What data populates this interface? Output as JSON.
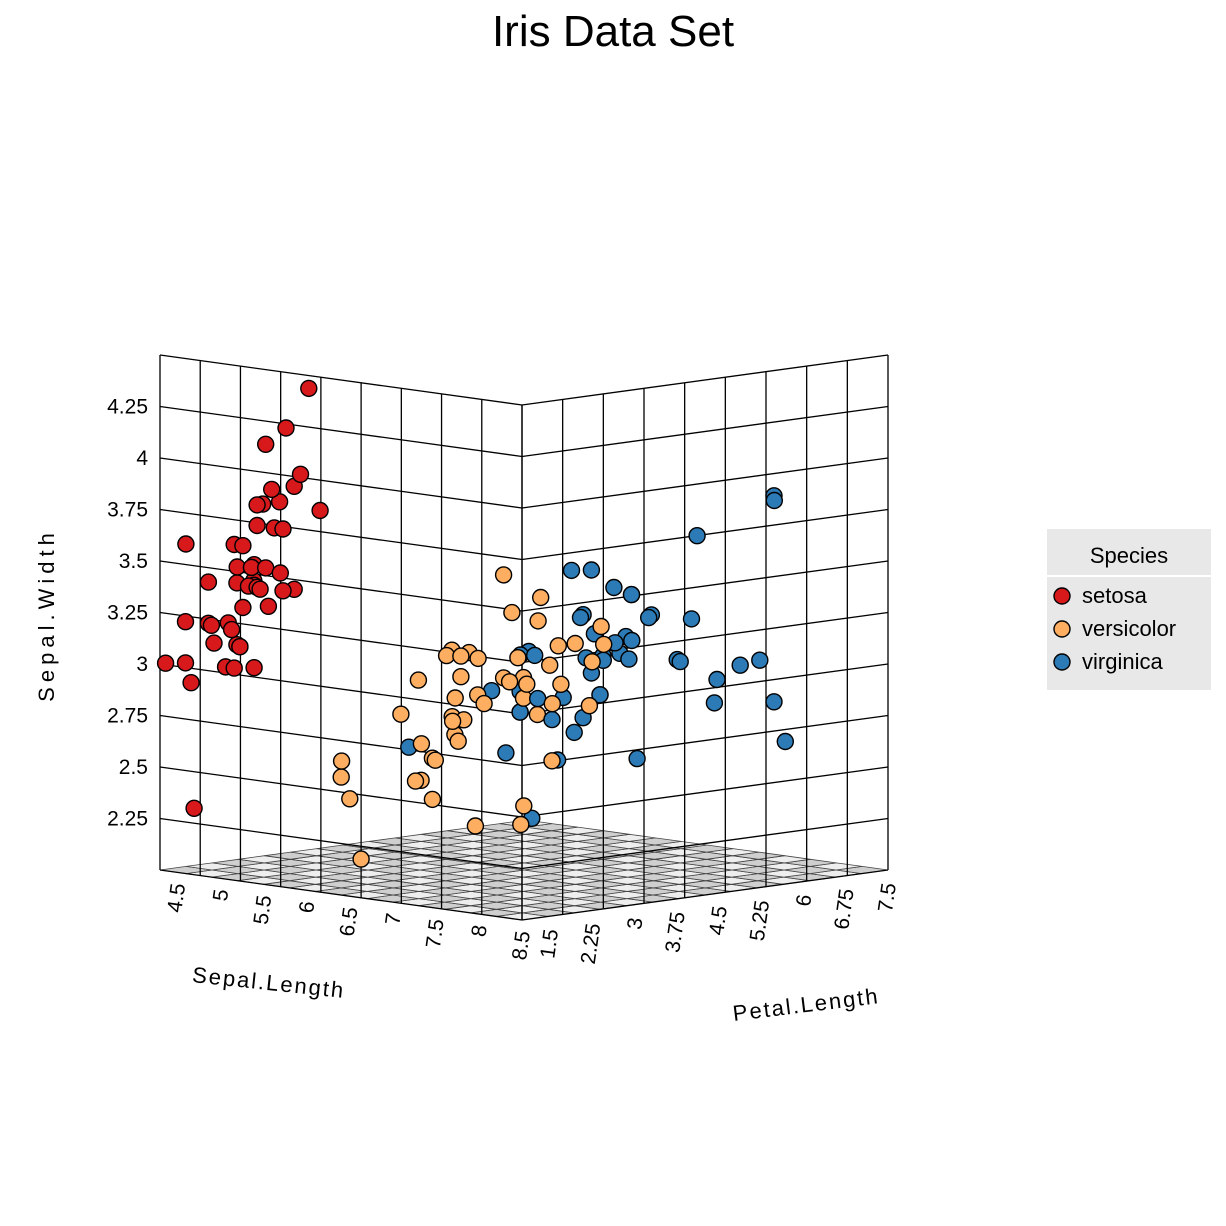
{
  "chart_data": {
    "type": "scatter",
    "title": "Iris Data Set",
    "axes": {
      "x": {
        "label": "Sepal.Length",
        "ticks": [
          "4.5",
          "5",
          "5.5",
          "6",
          "6.5",
          "7",
          "7.5",
          "8",
          "8.5"
        ],
        "range": [
          4.3,
          8.5
        ]
      },
      "y": {
        "label": "Sepal.Width",
        "ticks": [
          "2.25",
          "2.5",
          "2.75",
          "3",
          "3.25",
          "3.5",
          "3.75",
          "4",
          "4.25"
        ],
        "range": [
          2.0,
          4.5
        ]
      },
      "z": {
        "label": "Petal.Length",
        "ticks": [
          "1.5",
          "2.25",
          "3",
          "3.75",
          "4.5",
          "5.25",
          "6",
          "6.75",
          "7.5"
        ],
        "range": [
          1.0,
          7.5
        ]
      }
    },
    "grid": true,
    "legend": {
      "title": "Species",
      "position": "right"
    },
    "series": [
      {
        "name": "setosa",
        "color": "#d7191c",
        "points": [
          [
            5.1,
            3.5,
            1.4
          ],
          [
            4.9,
            3.0,
            1.4
          ],
          [
            4.7,
            3.2,
            1.3
          ],
          [
            4.6,
            3.1,
            1.5
          ],
          [
            5.0,
            3.6,
            1.4
          ],
          [
            5.4,
            3.9,
            1.7
          ],
          [
            4.6,
            3.4,
            1.4
          ],
          [
            5.0,
            3.4,
            1.5
          ],
          [
            4.4,
            2.9,
            1.4
          ],
          [
            4.9,
            3.1,
            1.5
          ],
          [
            5.4,
            3.7,
            1.5
          ],
          [
            4.8,
            3.4,
            1.6
          ],
          [
            4.8,
            3.0,
            1.4
          ],
          [
            4.3,
            3.0,
            1.1
          ],
          [
            5.8,
            4.0,
            1.2
          ],
          [
            5.7,
            4.4,
            1.5
          ],
          [
            5.4,
            3.9,
            1.3
          ],
          [
            5.1,
            3.5,
            1.4
          ],
          [
            5.7,
            3.8,
            1.7
          ],
          [
            5.1,
            3.8,
            1.5
          ],
          [
            5.4,
            3.4,
            1.7
          ],
          [
            5.1,
            3.7,
            1.5
          ],
          [
            4.6,
            3.6,
            1.0
          ],
          [
            5.1,
            3.3,
            1.7
          ],
          [
            4.8,
            3.4,
            1.9
          ],
          [
            5.0,
            3.0,
            1.6
          ],
          [
            5.0,
            3.4,
            1.6
          ],
          [
            5.2,
            3.5,
            1.5
          ],
          [
            5.2,
            3.4,
            1.4
          ],
          [
            4.7,
            3.2,
            1.6
          ],
          [
            4.8,
            3.1,
            1.6
          ],
          [
            5.4,
            3.4,
            1.5
          ],
          [
            5.2,
            4.1,
            1.5
          ],
          [
            5.5,
            4.2,
            1.4
          ],
          [
            4.9,
            3.1,
            1.5
          ],
          [
            5.0,
            3.2,
            1.2
          ],
          [
            5.5,
            3.5,
            1.3
          ],
          [
            4.9,
            3.6,
            1.4
          ],
          [
            4.4,
            3.0,
            1.3
          ],
          [
            5.1,
            3.4,
            1.5
          ],
          [
            5.0,
            3.5,
            1.3
          ],
          [
            4.5,
            2.3,
            1.3
          ],
          [
            4.4,
            3.2,
            1.3
          ],
          [
            5.0,
            3.5,
            1.6
          ],
          [
            5.1,
            3.8,
            1.9
          ],
          [
            4.8,
            3.0,
            1.4
          ],
          [
            5.1,
            3.8,
            1.6
          ],
          [
            4.6,
            3.2,
            1.4
          ],
          [
            5.3,
            3.7,
            1.5
          ],
          [
            5.0,
            3.3,
            1.4
          ]
        ]
      },
      {
        "name": "versicolor",
        "color": "#fdae61",
        "points": [
          [
            7.0,
            3.2,
            4.7
          ],
          [
            6.4,
            3.2,
            4.5
          ],
          [
            6.9,
            3.1,
            4.9
          ],
          [
            5.5,
            2.3,
            4.0
          ],
          [
            6.5,
            2.8,
            4.6
          ],
          [
            5.7,
            2.8,
            4.5
          ],
          [
            6.3,
            3.3,
            4.7
          ],
          [
            4.9,
            2.4,
            3.3
          ],
          [
            6.6,
            2.9,
            4.6
          ],
          [
            5.2,
            2.7,
            3.9
          ],
          [
            5.0,
            2.0,
            3.5
          ],
          [
            5.9,
            3.0,
            4.2
          ],
          [
            6.0,
            2.2,
            4.0
          ],
          [
            6.1,
            2.9,
            4.7
          ],
          [
            5.6,
            2.9,
            3.6
          ],
          [
            6.7,
            3.1,
            4.4
          ],
          [
            5.6,
            3.0,
            4.5
          ],
          [
            5.8,
            2.7,
            4.1
          ],
          [
            6.2,
            2.2,
            4.5
          ],
          [
            5.6,
            2.5,
            3.9
          ],
          [
            5.9,
            3.2,
            4.8
          ],
          [
            6.1,
            2.8,
            4.0
          ],
          [
            6.3,
            2.5,
            4.9
          ],
          [
            6.1,
            2.8,
            4.7
          ],
          [
            6.4,
            2.9,
            4.3
          ],
          [
            6.6,
            3.0,
            4.4
          ],
          [
            6.8,
            2.8,
            4.8
          ],
          [
            6.7,
            3.0,
            5.0
          ],
          [
            6.0,
            2.9,
            4.5
          ],
          [
            5.7,
            2.6,
            3.5
          ],
          [
            5.5,
            2.4,
            3.8
          ],
          [
            5.5,
            2.4,
            3.7
          ],
          [
            5.8,
            2.7,
            3.9
          ],
          [
            6.0,
            2.7,
            5.1
          ],
          [
            5.4,
            3.0,
            4.5
          ],
          [
            6.0,
            3.4,
            4.5
          ],
          [
            6.7,
            3.1,
            4.7
          ],
          [
            6.3,
            2.3,
            4.4
          ],
          [
            5.6,
            3.0,
            4.1
          ],
          [
            5.5,
            2.5,
            4.0
          ],
          [
            5.5,
            2.6,
            4.4
          ],
          [
            6.1,
            3.0,
            4.6
          ],
          [
            5.8,
            2.6,
            4.0
          ],
          [
            5.0,
            2.3,
            3.3
          ],
          [
            5.6,
            2.7,
            4.2
          ],
          [
            5.7,
            3.0,
            4.2
          ],
          [
            5.7,
            2.9,
            4.2
          ],
          [
            6.2,
            2.9,
            4.3
          ],
          [
            5.1,
            2.5,
            3.0
          ],
          [
            5.7,
            2.8,
            4.1
          ]
        ]
      },
      {
        "name": "virginica",
        "color": "#2c7bb6",
        "points": [
          [
            6.3,
            3.3,
            6.0
          ],
          [
            5.8,
            2.7,
            5.1
          ],
          [
            7.1,
            3.0,
            5.9
          ],
          [
            6.3,
            2.9,
            5.6
          ],
          [
            6.5,
            3.0,
            5.8
          ],
          [
            7.6,
            3.0,
            6.6
          ],
          [
            4.9,
            2.5,
            4.5
          ],
          [
            7.3,
            2.9,
            6.3
          ],
          [
            6.7,
            2.5,
            5.8
          ],
          [
            7.2,
            3.6,
            6.1
          ],
          [
            6.5,
            3.2,
            5.1
          ],
          [
            6.4,
            2.7,
            5.3
          ],
          [
            6.8,
            3.0,
            5.5
          ],
          [
            5.7,
            2.5,
            5.0
          ],
          [
            5.8,
            2.8,
            5.1
          ],
          [
            6.4,
            3.2,
            5.3
          ],
          [
            6.5,
            3.0,
            5.5
          ],
          [
            7.7,
            3.8,
            6.7
          ],
          [
            7.7,
            2.6,
            6.9
          ],
          [
            6.0,
            2.2,
            5.0
          ],
          [
            6.9,
            3.2,
            5.7
          ],
          [
            5.6,
            2.8,
            4.9
          ],
          [
            7.7,
            2.8,
            6.7
          ],
          [
            6.3,
            2.7,
            4.9
          ],
          [
            6.7,
            3.3,
            5.7
          ],
          [
            7.2,
            3.2,
            6.0
          ],
          [
            6.2,
            2.8,
            4.8
          ],
          [
            6.1,
            3.0,
            4.9
          ],
          [
            6.4,
            2.8,
            5.6
          ],
          [
            7.2,
            3.0,
            5.8
          ],
          [
            7.4,
            2.8,
            6.1
          ],
          [
            7.9,
            3.8,
            6.4
          ],
          [
            6.4,
            2.8,
            5.6
          ],
          [
            6.3,
            2.8,
            5.1
          ],
          [
            6.1,
            2.6,
            5.6
          ],
          [
            7.7,
            3.0,
            6.1
          ],
          [
            6.3,
            3.4,
            5.6
          ],
          [
            6.4,
            3.1,
            5.5
          ],
          [
            6.0,
            3.0,
            4.8
          ],
          [
            6.9,
            3.1,
            5.4
          ],
          [
            6.7,
            3.1,
            5.6
          ],
          [
            6.9,
            3.1,
            5.1
          ],
          [
            5.8,
            2.7,
            5.1
          ],
          [
            6.8,
            3.2,
            5.9
          ],
          [
            6.7,
            3.3,
            5.7
          ],
          [
            6.7,
            3.0,
            5.2
          ],
          [
            6.3,
            2.5,
            5.0
          ],
          [
            6.5,
            3.0,
            5.2
          ],
          [
            6.2,
            3.4,
            5.4
          ],
          [
            5.9,
            3.0,
            5.1
          ]
        ]
      }
    ]
  }
}
